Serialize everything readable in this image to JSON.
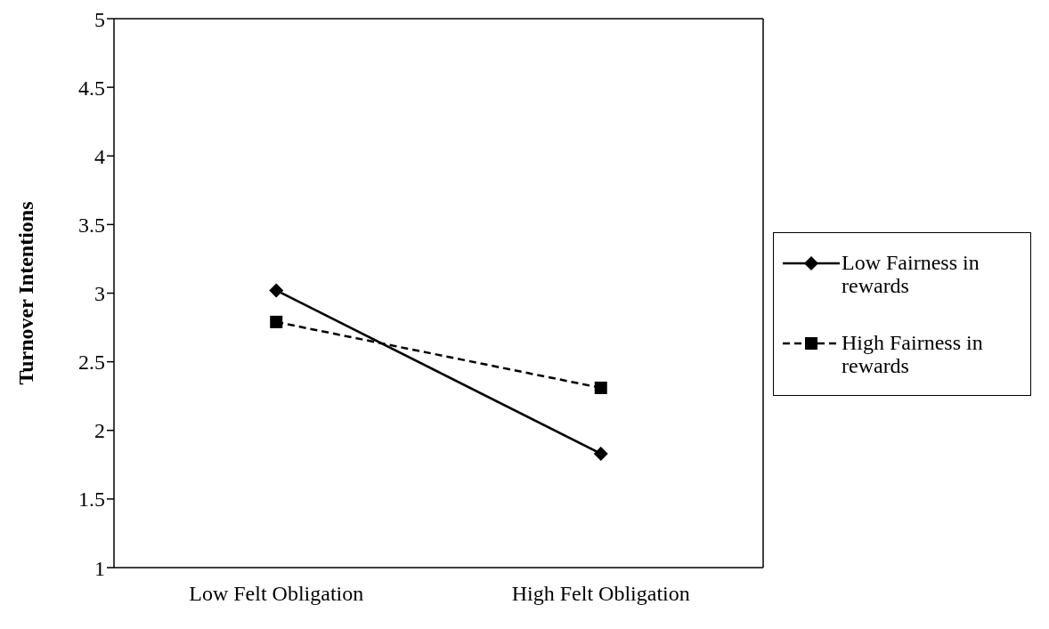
{
  "chart_data": {
    "type": "line",
    "ylabel": "Turnover Intentions",
    "categories": [
      "Low Felt Obligation",
      "High Felt Obligation"
    ],
    "series": [
      {
        "name": "Low Fairness in rewards",
        "color": "#000000",
        "values": [
          3.02,
          1.83
        ],
        "marker": "diamond",
        "line_style": "solid"
      },
      {
        "name": "High Fairness in rewards",
        "color": "#000000",
        "values": [
          2.79,
          2.31
        ],
        "marker": "square",
        "line_style": "dashed"
      }
    ],
    "ylim": [
      1,
      5
    ],
    "yticks": [
      1,
      1.5,
      2,
      2.5,
      3,
      3.5,
      4,
      4.5,
      5
    ],
    "grid": false,
    "legend": "right"
  }
}
